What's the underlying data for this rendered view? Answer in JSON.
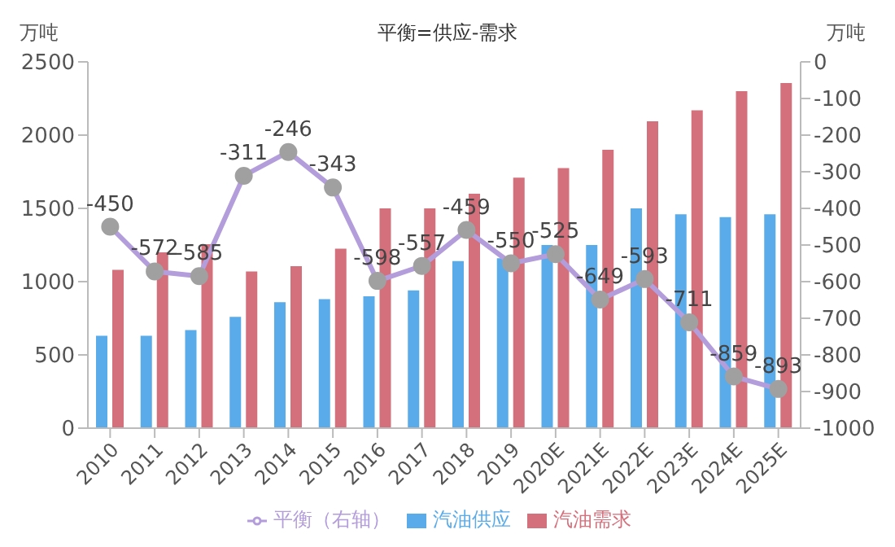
{
  "chart_data": {
    "type": "bar",
    "title": "平衡=供应-需求",
    "ylabel": "万吨",
    "y2label": "万吨",
    "categories": [
      "2010",
      "2011",
      "2012",
      "2013",
      "2014",
      "2015",
      "2016",
      "2017",
      "2018",
      "2019",
      "2020E",
      "2021E",
      "2022E",
      "2023E",
      "2024E",
      "2025E"
    ],
    "series": [
      {
        "name": "汽油供应",
        "color": "#5aabea",
        "values": [
          630,
          630,
          670,
          760,
          860,
          880,
          900,
          940,
          1140,
          1160,
          1250,
          1250,
          1500,
          1460,
          1440,
          1460
        ]
      },
      {
        "name": "汽油需求",
        "color": "#d4707c",
        "values": [
          1080,
          1200,
          1255,
          1070,
          1105,
          1225,
          1500,
          1500,
          1600,
          1710,
          1775,
          1900,
          2095,
          2170,
          2300,
          2355
        ]
      },
      {
        "name": "平衡（右轴）",
        "type": "line",
        "axis": "y2",
        "color": "#b39ddb",
        "marker": "circle",
        "data_labels": true,
        "values": [
          -450,
          -572,
          -585,
          -311,
          -246,
          -343,
          -598,
          -557,
          -459,
          -550,
          -525,
          -649,
          -593,
          -711,
          -859,
          -893
        ]
      }
    ],
    "ylim": [
      0,
      2500
    ],
    "yticks": [
      0,
      500,
      1000,
      1500,
      2000,
      2500
    ],
    "y2lim": [
      -1000,
      0
    ],
    "y2ticks": [
      -1000,
      -900,
      -800,
      -700,
      -600,
      -500,
      -400,
      -300,
      -200,
      -100,
      0
    ],
    "grid": false,
    "legend": "bottom"
  }
}
